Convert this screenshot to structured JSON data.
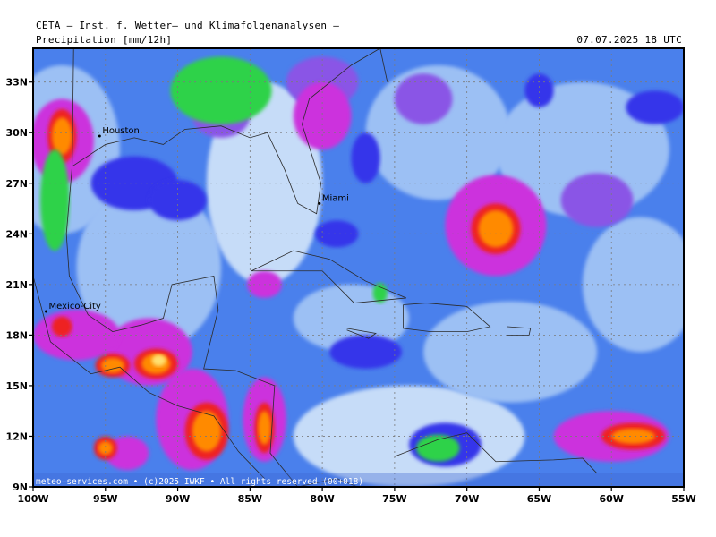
{
  "header": {
    "title": "CETA – Inst. f. Wetter– und Klimafolgenanalysen –",
    "subtitle": "Precipitation [mm/12h]",
    "valid_time": "07.07.2025 18 UTC"
  },
  "map": {
    "lon_range": [
      -100,
      -55
    ],
    "lat_range": [
      9,
      35
    ],
    "lon_ticks": [
      {
        "value": -100,
        "label": "100W"
      },
      {
        "value": -95,
        "label": "95W"
      },
      {
        "value": -90,
        "label": "90W"
      },
      {
        "value": -85,
        "label": "85W"
      },
      {
        "value": -80,
        "label": "80W"
      },
      {
        "value": -75,
        "label": "75W"
      },
      {
        "value": -70,
        "label": "70W"
      },
      {
        "value": -65,
        "label": "65W"
      },
      {
        "value": -60,
        "label": "60W"
      },
      {
        "value": -55,
        "label": "55W"
      }
    ],
    "lat_ticks": [
      {
        "value": 9,
        "label": "9N"
      },
      {
        "value": 12,
        "label": "12N"
      },
      {
        "value": 15,
        "label": "15N"
      },
      {
        "value": 18,
        "label": "18N"
      },
      {
        "value": 21,
        "label": "21N"
      },
      {
        "value": 24,
        "label": "24N"
      },
      {
        "value": 27,
        "label": "27N"
      },
      {
        "value": 30,
        "label": "30N"
      },
      {
        "value": 33,
        "label": "33N"
      }
    ],
    "cities": [
      {
        "name": "Houston",
        "lon": -95.4,
        "lat": 29.8
      },
      {
        "name": "Miami",
        "lon": -80.2,
        "lat": 25.8
      },
      {
        "name": "Mexico-City",
        "lon": -99.1,
        "lat": 19.4
      }
    ],
    "credit": "meteo–services.com • (c)2025 IWKF • All rights reserved (00+018)",
    "colors": {
      "background": "#4a80ec",
      "light": "#9cc0f4",
      "pale": "#c6dcf8",
      "blue_band": "#3535ea",
      "green_band": "#2fd24a",
      "magenta": "#cc33dd",
      "purple": "#8a55e6",
      "red": "#ee2222",
      "orange": "#ff8a00",
      "yellow": "#ffe070"
    }
  }
}
